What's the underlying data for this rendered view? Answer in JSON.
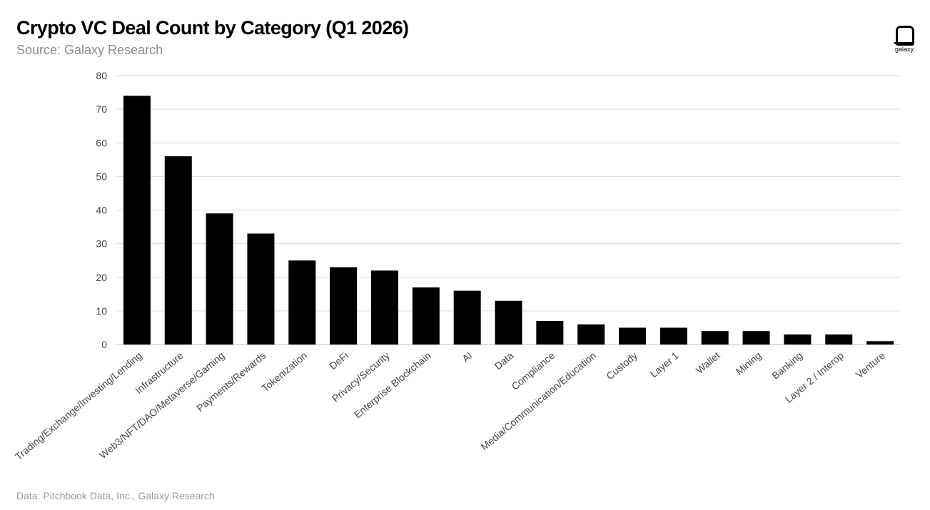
{
  "header": {
    "title": "Crypto VC Deal Count by Category (Q1 2026)",
    "subtitle": "Source: Galaxy Research"
  },
  "footer": {
    "note": "Data: Pitchbook Data, Inc., Galaxy Research"
  },
  "logo": {
    "text": "galaxy",
    "icon": "galaxy-logo-icon"
  },
  "colors": {
    "bar": "#000000",
    "grid": "#d9d9d9",
    "tick_label": "#444444"
  },
  "chart_data": {
    "type": "bar",
    "title": "Crypto VC Deal Count by Category (Q1 2026)",
    "subtitle": "Source: Galaxy Research",
    "xlabel": "",
    "ylabel": "",
    "ylim": [
      0,
      80
    ],
    "yticks": [
      0,
      10,
      20,
      30,
      40,
      50,
      60,
      70,
      80
    ],
    "grid": true,
    "legend": "none",
    "categories": [
      "Trading/Exchange/Investing/Lending",
      "Infrastructure",
      "Web3/NFT/DAO/Metaverse/Gaming",
      "Payments/Rewards",
      "Tokenization",
      "DeFi",
      "Privacy/Security",
      "Enterprise Blockchain",
      "AI",
      "Data",
      "Compliance",
      "Media/Communication/Education",
      "Custody",
      "Layer 1",
      "Wallet",
      "Mining",
      "Banking",
      "Layer 2 / Interop",
      "Venture"
    ],
    "values": [
      74,
      56,
      39,
      33,
      25,
      23,
      22,
      17,
      16,
      13,
      7,
      6,
      5,
      5,
      4,
      4,
      3,
      3,
      1
    ]
  }
}
